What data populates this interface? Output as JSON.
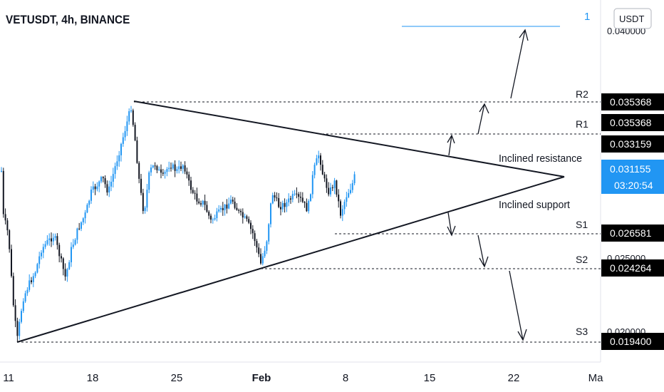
{
  "header": {
    "title": "VETUSDT, 4h, BINANCE"
  },
  "currency_button": {
    "label": "USDT"
  },
  "price_scale": {
    "partial_labels": [
      "0.040000",
      "0.025000",
      "0.020000"
    ]
  },
  "price_tags": {
    "r2": "0.035368",
    "r1": "0.035368",
    "r1b": "0.033159",
    "last": "0.031155",
    "countdown": "03:20:54",
    "s1": "0.026581",
    "s2": "0.024264",
    "s3": "0.019400"
  },
  "level_labels": {
    "r2": "R2",
    "r1": "R1",
    "s1": "S1",
    "s2": "S2",
    "s3": "S3"
  },
  "annotations": {
    "inclined_resistance": "Inclined resistance",
    "inclined_support": "Inclined support",
    "target_marker": "1"
  },
  "colors": {
    "up": "#2196F3",
    "down": "#131722",
    "tag_bg": "#000000",
    "last_tag_bg": "#2196F3",
    "target_line": "#2196F3"
  },
  "chart_data": {
    "type": "candlestick",
    "x_ticks": [
      "11",
      "18",
      "25",
      "Feb",
      "8",
      "15",
      "22",
      "Ma"
    ],
    "levels": [
      {
        "name": "R2",
        "price": 0.035368
      },
      {
        "name": "R1",
        "price": 0.033159
      },
      {
        "name": "S1",
        "price": 0.026581
      },
      {
        "name": "S2",
        "price": 0.024264
      },
      {
        "name": "S3",
        "price": 0.0194
      }
    ],
    "last_price": 0.031155,
    "ylim": [
      0.0185,
      0.0412
    ]
  }
}
